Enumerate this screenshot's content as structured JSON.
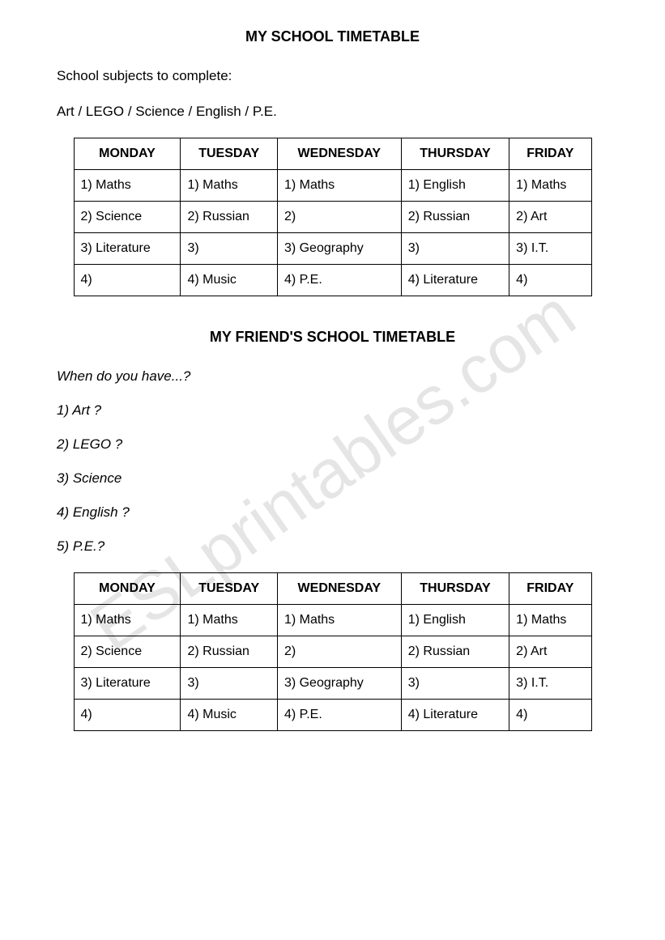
{
  "watermark_text": "ESLprintables.com",
  "section1": {
    "title": "MY SCHOOL TIMETABLE",
    "subtitle": "School subjects to complete:",
    "subjects_line": "Art / LEGO / Science / English  / P.E.",
    "table": {
      "headers": [
        "MONDAY",
        "TUESDAY",
        "WEDNESDAY",
        "THURSDAY",
        "FRIDAY"
      ],
      "rows": [
        [
          "1) Maths",
          "1) Maths",
          "1) Maths",
          "1) English",
          "1) Maths"
        ],
        [
          "2) Science",
          "2) Russian",
          "2)",
          "2) Russian",
          "2) Art"
        ],
        [
          "3) Literature",
          "3)",
          "3) Geography",
          "3)",
          "3) I.T."
        ],
        [
          "4)",
          "4) Music",
          "4) P.E.",
          "4) Literature",
          "4)"
        ]
      ]
    }
  },
  "section2": {
    "title": "MY FRIEND'S SCHOOL TIMETABLE",
    "question_intro": "When do you have...?",
    "questions": [
      "1) Art ?",
      "2) LEGO ?",
      "3) Science",
      "4) English ?",
      "5)  P.E.?"
    ],
    "table": {
      "headers": [
        "MONDAY",
        "TUESDAY",
        "WEDNESDAY",
        "THURSDAY",
        "FRIDAY"
      ],
      "rows": [
        [
          "1) Maths",
          "1) Maths",
          "1) Maths",
          "1) English",
          "1) Maths"
        ],
        [
          "2) Science",
          "2) Russian",
          "2)",
          "2) Russian",
          "2) Art"
        ],
        [
          "3) Literature",
          "3)",
          "3) Geography",
          "3)",
          "3) I.T."
        ],
        [
          "4)",
          "4) Music",
          "4) P.E.",
          "4) Literature",
          "4)"
        ]
      ]
    }
  },
  "styling": {
    "background_color": "#ffffff",
    "text_color": "#000000",
    "border_color": "#000000",
    "watermark_color": "rgba(0,0,0,0.10)",
    "title_fontsize": 18,
    "body_fontsize": 17,
    "table_fontsize": 16,
    "font_family": "Verdana, Geneva, sans-serif",
    "watermark_rotate_deg": -35,
    "watermark_fontsize": 84
  }
}
